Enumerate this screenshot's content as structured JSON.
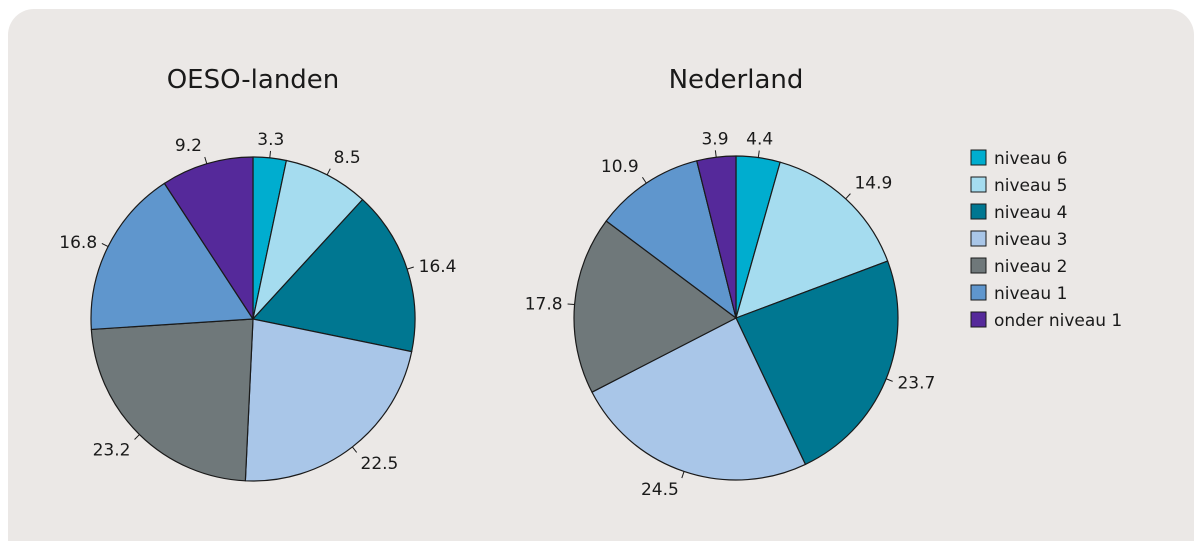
{
  "chart_data": [
    {
      "type": "pie",
      "title": "OESO-landen",
      "categories": [
        "niveau 6",
        "niveau 5",
        "niveau 4",
        "niveau 3",
        "niveau 2",
        "niveau 1",
        "onder niveau 1"
      ],
      "values": [
        3.3,
        8.5,
        16.4,
        22.5,
        23.2,
        16.8,
        9.2
      ],
      "labels": [
        "3.3",
        "8.5",
        "16.4",
        "22.5",
        "23.2",
        "16.8",
        "9.2"
      ]
    },
    {
      "type": "pie",
      "title": "Nederland",
      "categories": [
        "niveau 6",
        "niveau 5",
        "niveau 4",
        "niveau 3",
        "niveau 2",
        "niveau 1",
        "onder niveau 1"
      ],
      "values": [
        4.4,
        14.9,
        23.7,
        24.5,
        17.8,
        10.9,
        3.9
      ],
      "labels": [
        "4.4",
        "14.9",
        "23.7",
        "24.5",
        "17.8",
        "10.9",
        "3.9"
      ]
    }
  ],
  "legend": {
    "placement": "right",
    "items": [
      {
        "label": "niveau 6",
        "color": "#00adcf"
      },
      {
        "label": "niveau 5",
        "color": "#a5dcef"
      },
      {
        "label": "niveau 4",
        "color": "#007791"
      },
      {
        "label": "niveau 3",
        "color": "#a9c6e8"
      },
      {
        "label": "niveau 2",
        "color": "#6f787a"
      },
      {
        "label": "niveau 1",
        "color": "#5f96cd"
      },
      {
        "label": "onder niveau 1",
        "color": "#55299a"
      }
    ]
  },
  "colors": {
    "panel_background": "#ebe8e6",
    "slice_border": "#1a1a1a"
  }
}
